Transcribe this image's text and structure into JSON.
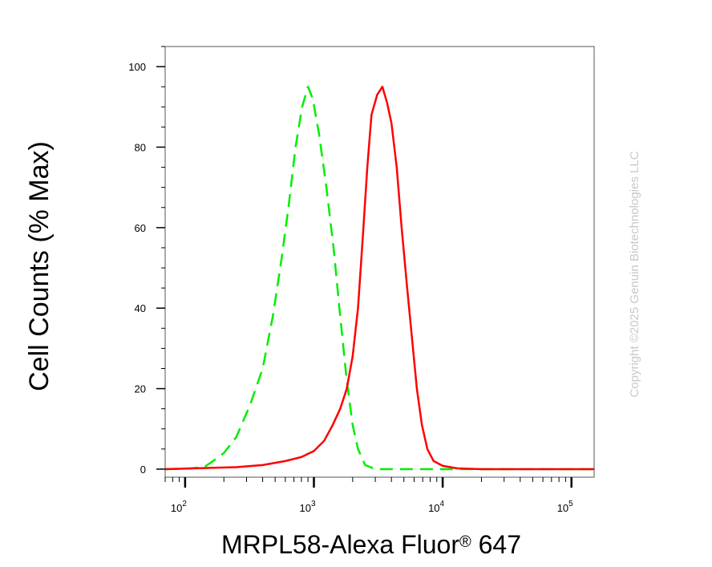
{
  "chart_data": {
    "type": "line",
    "xlabel": "MRPL58-Alexa Fluor",
    "xlabel_mark": "®",
    "xlabel_suffix": " 647",
    "ylabel": "Cell Counts (% Max)",
    "x_scale": "log",
    "xlim": [
      70,
      150000
    ],
    "ylim": [
      -2,
      105
    ],
    "y_ticks": [
      0,
      20,
      40,
      60,
      80,
      100
    ],
    "x_ticks": [
      {
        "value": 100,
        "base": "10",
        "exp": "2"
      },
      {
        "value": 1000,
        "base": "10",
        "exp": "3"
      },
      {
        "value": 10000,
        "base": "10",
        "exp": "4"
      },
      {
        "value": 100000,
        "base": "10",
        "exp": "5"
      }
    ],
    "grid": false,
    "legend": "none",
    "watermark": "Copyright ©2025 Genuin Biotechnologies LLC",
    "series": [
      {
        "color": "#00ee00",
        "style": "dashed",
        "points": [
          [
            70,
            0
          ],
          [
            110,
            0.2
          ],
          [
            140,
            0.5
          ],
          [
            165,
            2
          ],
          [
            200,
            4
          ],
          [
            250,
            8
          ],
          [
            320,
            16
          ],
          [
            400,
            25
          ],
          [
            480,
            38
          ],
          [
            560,
            52
          ],
          [
            640,
            66
          ],
          [
            720,
            80
          ],
          [
            810,
            90
          ],
          [
            900,
            95
          ],
          [
            980,
            92
          ],
          [
            1100,
            83
          ],
          [
            1250,
            70
          ],
          [
            1420,
            55
          ],
          [
            1600,
            38
          ],
          [
            1800,
            22
          ],
          [
            2000,
            11
          ],
          [
            2200,
            5
          ],
          [
            2500,
            1
          ],
          [
            3000,
            0
          ],
          [
            150000,
            0
          ]
        ]
      },
      {
        "color": "#ff0000",
        "style": "solid",
        "points": [
          [
            70,
            0
          ],
          [
            250,
            0.5
          ],
          [
            400,
            1
          ],
          [
            600,
            2
          ],
          [
            800,
            3
          ],
          [
            1000,
            4.5
          ],
          [
            1200,
            7
          ],
          [
            1400,
            11
          ],
          [
            1600,
            15
          ],
          [
            1800,
            20
          ],
          [
            2000,
            28
          ],
          [
            2200,
            40
          ],
          [
            2400,
            58
          ],
          [
            2600,
            75
          ],
          [
            2800,
            88
          ],
          [
            3100,
            93
          ],
          [
            3400,
            95
          ],
          [
            3700,
            91
          ],
          [
            4000,
            86
          ],
          [
            4400,
            75
          ],
          [
            4800,
            60
          ],
          [
            5300,
            45
          ],
          [
            5800,
            32
          ],
          [
            6300,
            20
          ],
          [
            6900,
            11
          ],
          [
            7600,
            5
          ],
          [
            8500,
            2
          ],
          [
            10000,
            0.8
          ],
          [
            13000,
            0.2
          ],
          [
            20000,
            0
          ],
          [
            150000,
            0
          ]
        ]
      }
    ]
  }
}
